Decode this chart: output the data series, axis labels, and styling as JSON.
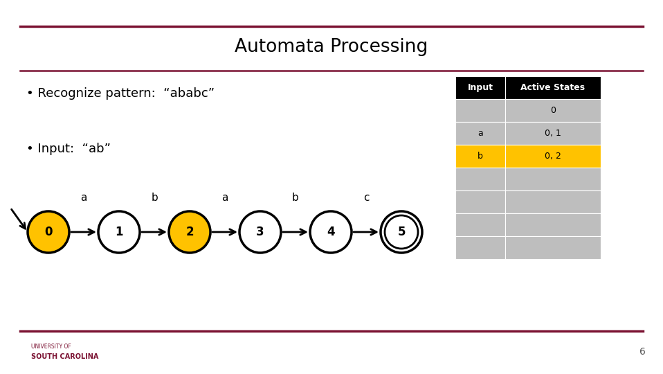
{
  "title": "Automata Processing",
  "bullet1": "Recognize pattern:  “ababc”",
  "bullet2": "Input:  “ab”",
  "bg_color": "#ffffff",
  "title_color": "#000000",
  "bar_color": "#7B1232",
  "states": [
    0,
    1,
    2,
    3,
    4,
    5
  ],
  "highlighted_states": [
    0,
    2
  ],
  "highlight_color": "#FFC200",
  "normal_color": "#ffffff",
  "double_circle_state": 5,
  "transitions": [
    {
      "from": 0,
      "to": 1,
      "label": "a"
    },
    {
      "from": 1,
      "to": 2,
      "label": "b"
    },
    {
      "from": 2,
      "to": 3,
      "label": "a"
    },
    {
      "from": 3,
      "to": 4,
      "label": "b"
    },
    {
      "from": 4,
      "to": 5,
      "label": "c"
    }
  ],
  "table_header": [
    "Input",
    "Active States"
  ],
  "table_rows": [
    [
      "",
      "0"
    ],
    [
      "a",
      "0, 1"
    ],
    [
      "b",
      "0, 2"
    ],
    [
      "",
      ""
    ],
    [
      "",
      ""
    ],
    [
      "",
      ""
    ],
    [
      "",
      ""
    ]
  ],
  "highlighted_row": 2,
  "table_highlight_color": "#FFC200",
  "table_header_bg": "#000000",
  "table_header_fg": "#ffffff",
  "table_row_bg": "#BEBEBE",
  "page_number": "6"
}
